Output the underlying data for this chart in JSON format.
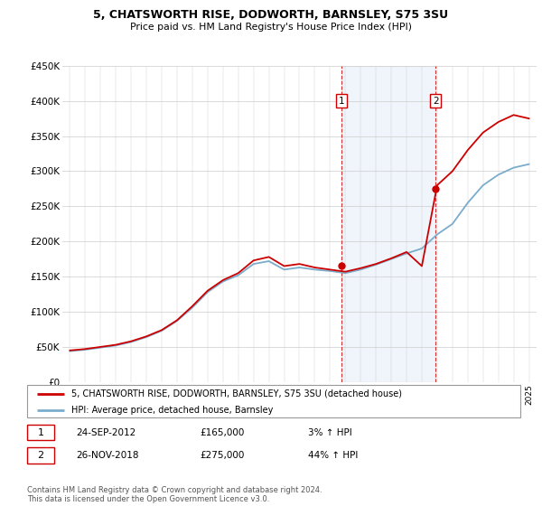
{
  "title": "5, CHATSWORTH RISE, DODWORTH, BARNSLEY, S75 3SU",
  "subtitle": "Price paid vs. HM Land Registry's House Price Index (HPI)",
  "ylim": [
    0,
    450000
  ],
  "yticks": [
    0,
    50000,
    100000,
    150000,
    200000,
    250000,
    300000,
    350000,
    400000,
    450000
  ],
  "ytick_labels": [
    "£0",
    "£50K",
    "£100K",
    "£150K",
    "£200K",
    "£250K",
    "£300K",
    "£350K",
    "£400K",
    "£450K"
  ],
  "legend_label_red": "5, CHATSWORTH RISE, DODWORTH, BARNSLEY, S75 3SU (detached house)",
  "legend_label_blue": "HPI: Average price, detached house, Barnsley",
  "transaction1_date": "24-SEP-2012",
  "transaction1_price": 165000,
  "transaction1_hpi": "3% ↑ HPI",
  "transaction2_date": "26-NOV-2018",
  "transaction2_price": 275000,
  "transaction2_hpi": "44% ↑ HPI",
  "footer": "Contains HM Land Registry data © Crown copyright and database right 2024.\nThis data is licensed under the Open Government Licence v3.0.",
  "red_color": "#cc0000",
  "blue_color": "#7aaccc",
  "vline_color": "#cc0000",
  "shading_color": "#cce0f0",
  "years": [
    1995,
    1996,
    1997,
    1998,
    1999,
    2000,
    2001,
    2002,
    2003,
    2004,
    2005,
    2006,
    2007,
    2008,
    2009,
    2010,
    2011,
    2012,
    2013,
    2014,
    2015,
    2016,
    2017,
    2018,
    2019,
    2020,
    2021,
    2022,
    2023,
    2024,
    2025
  ],
  "hpi_values": [
    44000,
    46000,
    49000,
    52000,
    57000,
    64000,
    73000,
    87000,
    106000,
    128000,
    143000,
    152000,
    168000,
    172000,
    160000,
    163000,
    160000,
    158000,
    155000,
    160000,
    167000,
    175000,
    183000,
    190000,
    210000,
    225000,
    255000,
    280000,
    295000,
    305000,
    310000
  ],
  "property_values": [
    45000,
    47000,
    50000,
    53000,
    58000,
    65000,
    74000,
    88000,
    108000,
    130000,
    145000,
    155000,
    173000,
    178000,
    165000,
    168000,
    163000,
    160000,
    157000,
    162000,
    168000,
    176000,
    185000,
    165000,
    280000,
    300000,
    330000,
    355000,
    370000,
    380000,
    375000
  ],
  "transaction1_year": 2012.73,
  "transaction2_year": 2018.9,
  "xlim_left": 1994.5,
  "xlim_right": 2025.5
}
